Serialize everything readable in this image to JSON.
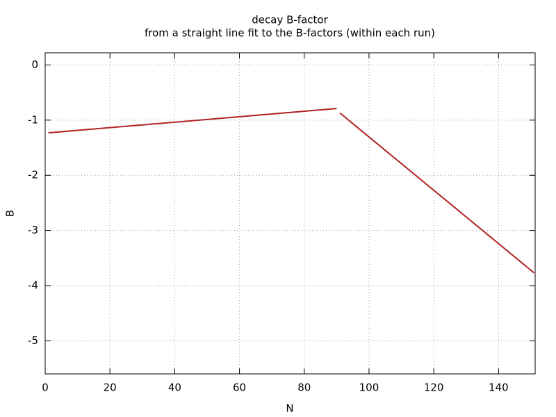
{
  "chart_data": {
    "type": "line",
    "title": "decay B-factor",
    "subtitle": "from a straight line fit to the B-factors (within each run)",
    "x_label": "N",
    "y_label": "B",
    "series": [
      {
        "color": "#b22222",
        "x": [
          1,
          90
        ],
        "values": [
          -1.23,
          -0.79
        ]
      },
      {
        "color": "#b22222",
        "x": [
          91,
          151
        ],
        "values": [
          -0.87,
          -3.77
        ]
      }
    ],
    "xlim": [
      0,
      151.3
    ],
    "ylim": [
      -5.6,
      0.22
    ],
    "xticks": [
      0,
      20,
      40,
      60,
      80,
      100,
      120,
      140
    ],
    "yticks": [
      0,
      -1,
      -2,
      -3,
      -4,
      -5
    ],
    "grid": true
  }
}
